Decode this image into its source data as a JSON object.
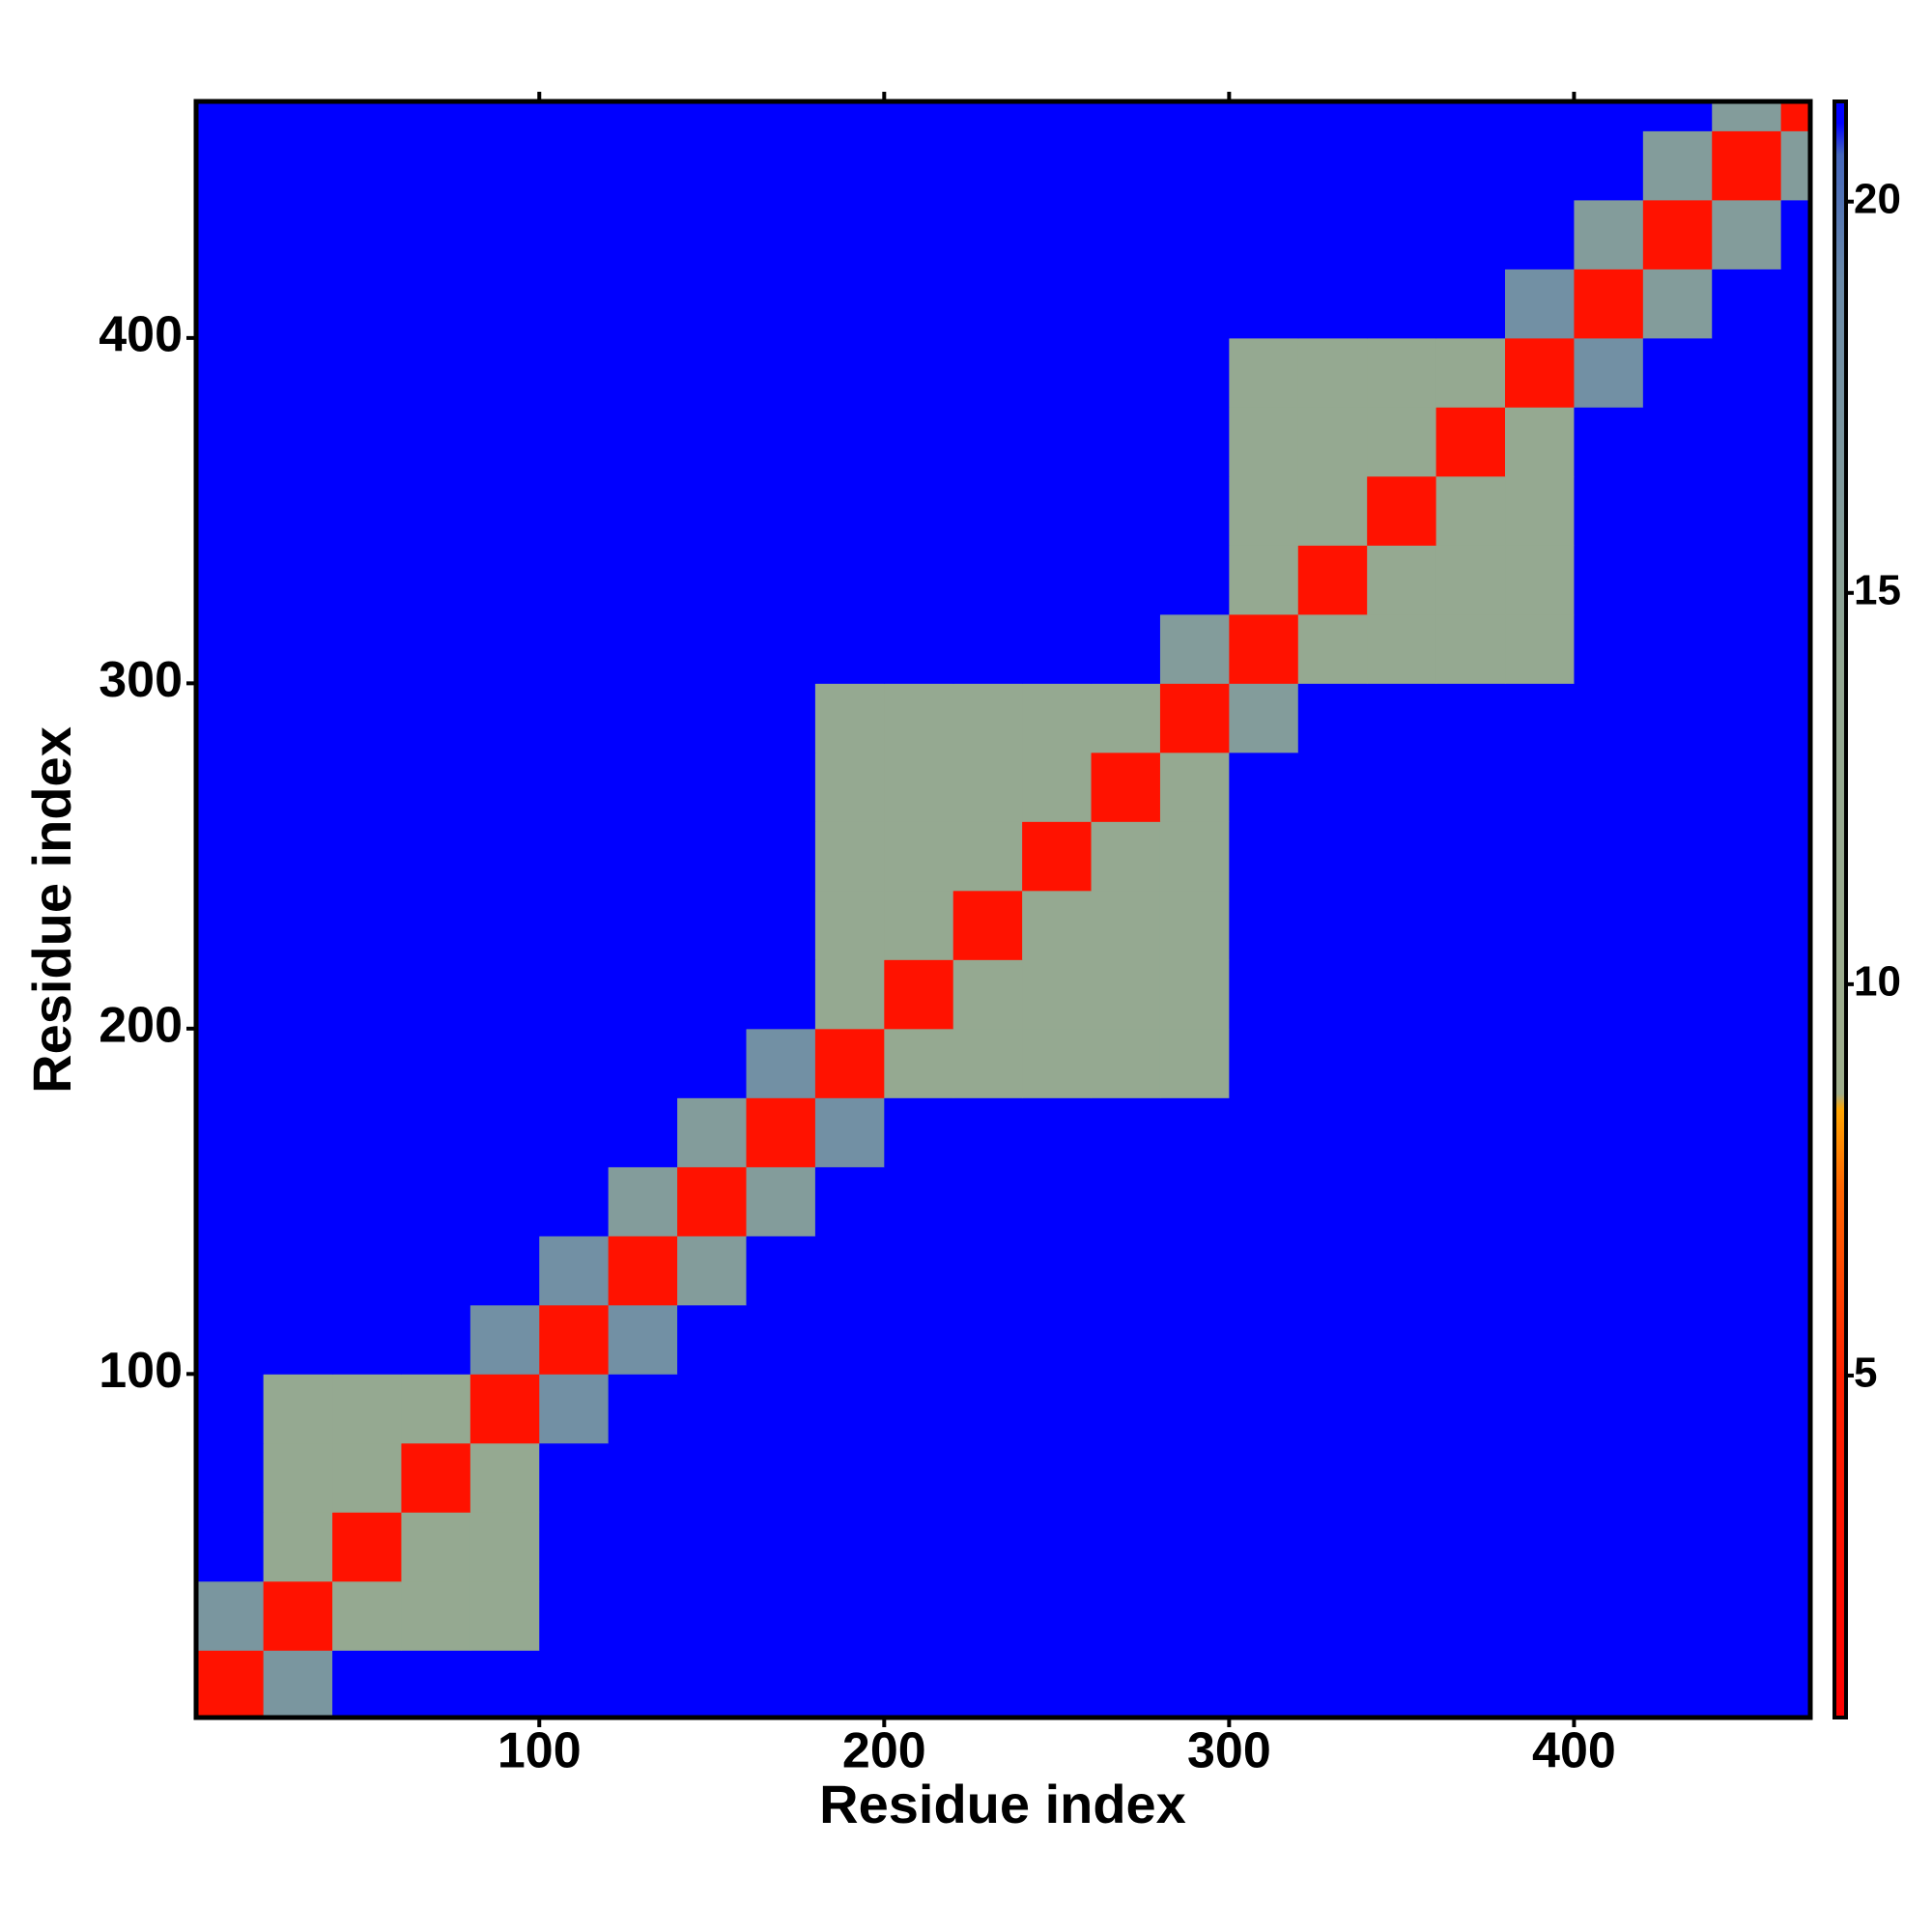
{
  "chart_data": {
    "type": "heatmap",
    "xlabel": "Residue index",
    "ylabel": "Residue index",
    "bins": [
      0,
      20,
      40,
      60,
      80,
      100,
      120,
      140,
      160,
      180,
      200,
      220,
      240,
      260,
      280,
      300,
      320,
      340,
      360,
      380,
      400,
      420,
      440,
      460,
      480
    ],
    "xlim": [
      0.5,
      468.5
    ],
    "ylim": [
      0.5,
      468.5
    ],
    "xticks": [
      100,
      200,
      300,
      400
    ],
    "yticks": [
      100,
      200,
      300,
      400
    ],
    "z": [
      [
        3,
        17,
        21,
        21,
        21,
        21,
        21,
        21,
        21,
        21,
        21,
        21,
        21,
        21,
        21,
        21,
        21,
        21,
        21,
        21,
        21,
        21,
        21,
        21
      ],
      [
        17,
        3,
        13,
        13,
        13,
        21,
        21,
        21,
        21,
        21,
        21,
        21,
        21,
        21,
        21,
        21,
        21,
        21,
        21,
        21,
        21,
        21,
        21,
        21
      ],
      [
        21,
        13,
        3,
        13,
        13,
        21,
        21,
        21,
        21,
        21,
        21,
        21,
        21,
        21,
        21,
        21,
        21,
        21,
        21,
        21,
        21,
        21,
        21,
        21
      ],
      [
        21,
        13,
        13,
        3,
        13,
        21,
        21,
        21,
        21,
        21,
        21,
        21,
        21,
        21,
        21,
        21,
        21,
        21,
        21,
        21,
        21,
        21,
        21,
        21
      ],
      [
        21,
        13,
        13,
        13,
        3,
        18,
        21,
        21,
        21,
        21,
        21,
        21,
        21,
        21,
        21,
        21,
        21,
        21,
        21,
        21,
        21,
        21,
        21,
        21
      ],
      [
        21,
        21,
        21,
        21,
        18,
        3,
        18,
        21,
        21,
        21,
        21,
        21,
        21,
        21,
        21,
        21,
        21,
        21,
        21,
        21,
        21,
        21,
        21,
        21
      ],
      [
        21,
        21,
        21,
        21,
        21,
        18,
        3,
        16,
        21,
        21,
        21,
        21,
        21,
        21,
        21,
        21,
        21,
        21,
        21,
        21,
        21,
        21,
        21,
        21
      ],
      [
        21,
        21,
        21,
        21,
        21,
        21,
        16,
        3,
        16,
        21,
        21,
        21,
        21,
        21,
        21,
        21,
        21,
        21,
        21,
        21,
        21,
        21,
        21,
        21
      ],
      [
        21,
        21,
        21,
        21,
        21,
        21,
        21,
        16,
        3,
        18,
        21,
        21,
        21,
        21,
        21,
        21,
        21,
        21,
        21,
        21,
        21,
        21,
        21,
        21
      ],
      [
        21,
        21,
        21,
        21,
        21,
        21,
        21,
        21,
        18,
        3,
        13,
        13,
        13,
        13,
        13,
        21,
        21,
        21,
        21,
        21,
        21,
        21,
        21,
        21
      ],
      [
        21,
        21,
        21,
        21,
        21,
        21,
        21,
        21,
        21,
        13,
        3,
        13,
        13,
        13,
        13,
        21,
        21,
        21,
        21,
        21,
        21,
        21,
        21,
        21
      ],
      [
        21,
        21,
        21,
        21,
        21,
        21,
        21,
        21,
        21,
        13,
        13,
        3,
        13,
        13,
        13,
        21,
        21,
        21,
        21,
        21,
        21,
        21,
        21,
        21
      ],
      [
        21,
        21,
        21,
        21,
        21,
        21,
        21,
        21,
        21,
        13,
        13,
        13,
        3,
        13,
        13,
        21,
        21,
        21,
        21,
        21,
        21,
        21,
        21,
        21
      ],
      [
        21,
        21,
        21,
        21,
        21,
        21,
        21,
        21,
        21,
        13,
        13,
        13,
        13,
        3,
        13,
        21,
        21,
        21,
        21,
        21,
        21,
        21,
        21,
        21
      ],
      [
        21,
        21,
        21,
        21,
        21,
        21,
        21,
        21,
        21,
        13,
        13,
        13,
        13,
        13,
        3,
        16,
        21,
        21,
        21,
        21,
        21,
        21,
        21,
        21
      ],
      [
        21,
        21,
        21,
        21,
        21,
        21,
        21,
        21,
        21,
        21,
        21,
        21,
        21,
        21,
        16,
        3,
        13,
        13,
        13,
        13,
        21,
        21,
        21,
        21
      ],
      [
        21,
        21,
        21,
        21,
        21,
        21,
        21,
        21,
        21,
        21,
        21,
        21,
        21,
        21,
        21,
        13,
        3,
        13,
        13,
        13,
        21,
        21,
        21,
        21
      ],
      [
        21,
        21,
        21,
        21,
        21,
        21,
        21,
        21,
        21,
        21,
        21,
        21,
        21,
        21,
        21,
        13,
        13,
        3,
        13,
        13,
        21,
        21,
        21,
        21
      ],
      [
        21,
        21,
        21,
        21,
        21,
        21,
        21,
        21,
        21,
        21,
        21,
        21,
        21,
        21,
        21,
        13,
        13,
        13,
        3,
        13,
        21,
        21,
        21,
        21
      ],
      [
        21,
        21,
        21,
        21,
        21,
        21,
        21,
        21,
        21,
        21,
        21,
        21,
        21,
        21,
        21,
        13,
        13,
        13,
        13,
        3,
        18,
        21,
        21,
        21
      ],
      [
        21,
        21,
        21,
        21,
        21,
        21,
        21,
        21,
        21,
        21,
        21,
        21,
        21,
        21,
        21,
        21,
        21,
        21,
        21,
        18,
        3,
        16,
        21,
        21
      ],
      [
        21,
        21,
        21,
        21,
        21,
        21,
        21,
        21,
        21,
        21,
        21,
        21,
        21,
        21,
        21,
        21,
        21,
        21,
        21,
        21,
        16,
        3,
        16,
        21
      ],
      [
        21,
        21,
        21,
        21,
        21,
        21,
        21,
        21,
        21,
        21,
        21,
        21,
        21,
        21,
        21,
        21,
        21,
        21,
        21,
        21,
        21,
        16,
        3,
        16
      ],
      [
        21,
        21,
        21,
        21,
        21,
        21,
        21,
        21,
        21,
        21,
        21,
        21,
        21,
        21,
        21,
        21,
        21,
        21,
        21,
        21,
        21,
        21,
        16,
        3
      ]
    ],
    "colorscale": [
      {
        "value": 0.63,
        "color": "#ff0000"
      },
      {
        "value": 5,
        "color": "#ff2200"
      },
      {
        "value": 7.4,
        "color": "#ff6600"
      },
      {
        "value": 8.4,
        "color": "#ffa500"
      },
      {
        "value": 8.6,
        "color": "#9fae8c"
      },
      {
        "value": 14,
        "color": "#93a892"
      },
      {
        "value": 19,
        "color": "#6a8aa8"
      },
      {
        "value": 20.6,
        "color": "#4466bb"
      },
      {
        "value": 21,
        "color": "#0000ff"
      },
      {
        "value": 21.28,
        "color": "#0000ff"
      }
    ],
    "colorbar": {
      "lim": [
        0.63,
        21.28
      ],
      "ticks": [
        5,
        10,
        15,
        20
      ]
    }
  }
}
